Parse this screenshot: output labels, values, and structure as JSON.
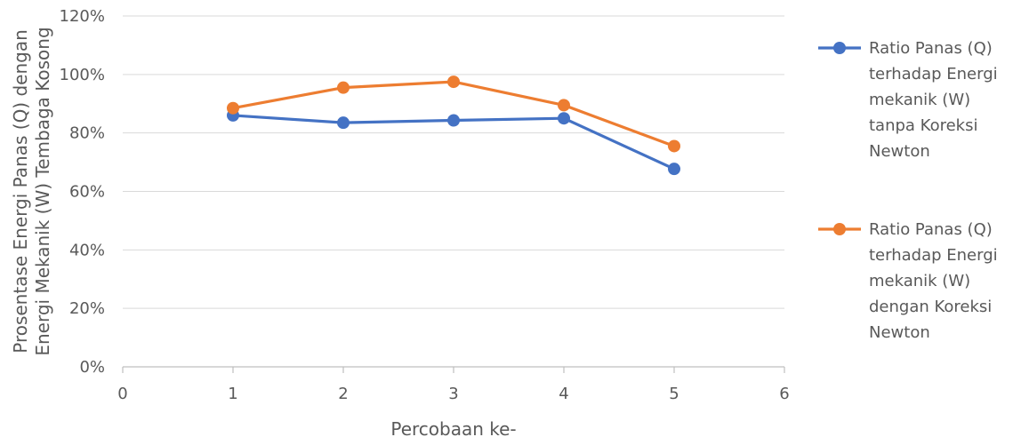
{
  "chart_data": {
    "type": "line",
    "title": "",
    "xlabel": "Percobaan ke-",
    "ylabel_lines": [
      "Prosentase  Energi Panas (Q) dengan",
      "Energi Mekanik (W) Tembaga Kosong"
    ],
    "xlim": [
      0,
      6
    ],
    "ylim": [
      0,
      1.2
    ],
    "x_ticks": [
      0,
      1,
      2,
      3,
      4,
      5,
      6
    ],
    "y_ticks": [
      0,
      0.2,
      0.4,
      0.6,
      0.8,
      1.0,
      1.2
    ],
    "y_tick_labels": [
      "0%",
      "20%",
      "40%",
      "60%",
      "80%",
      "100%",
      "120%"
    ],
    "grid": "horizontal",
    "legend_position": "right",
    "series": [
      {
        "name_lines": [
          "Ratio Panas (Q)",
          "terhadap Energi",
          "mekanik (W)",
          "tanpa Koreksi",
          "Newton"
        ],
        "color": "#4472C4",
        "x": [
          1,
          2,
          3,
          4,
          5
        ],
        "y": [
          0.86,
          0.835,
          0.843,
          0.85,
          0.677
        ]
      },
      {
        "name_lines": [
          "Ratio Panas (Q)",
          "terhadap Energi",
          "mekanik (W)",
          "dengan Koreksi",
          "Newton"
        ],
        "color": "#ED7D31",
        "x": [
          1,
          2,
          3,
          4,
          5
        ],
        "y": [
          0.885,
          0.955,
          0.975,
          0.895,
          0.755
        ]
      }
    ]
  }
}
